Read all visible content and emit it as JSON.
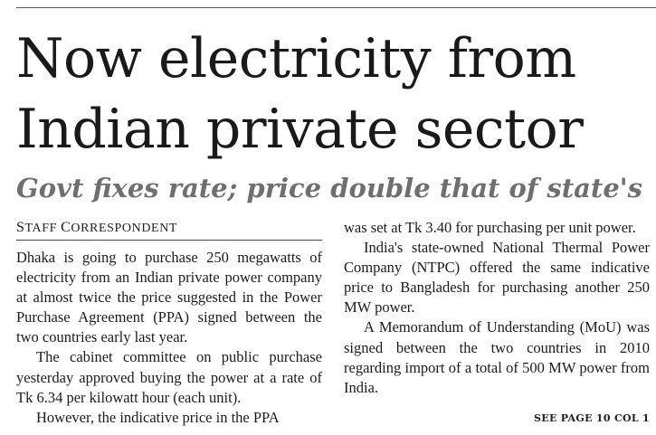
{
  "article": {
    "headline_line1": "Now electricity from",
    "headline_line2": "Indian private sector",
    "deck": "Govt fixes rate; price double that of state's",
    "byline": {
      "s_cap": "S",
      "s_rest": "TAFF ",
      "c_cap": "C",
      "c_rest": "ORRESPONDENT"
    },
    "body_left": [
      "Dhaka is going to purchase 250 megawatts of electricity from an Indian private power company at almost twice the price suggested in the Power Purchase Agreement (PPA) signed between the two countries early last year.",
      "The cabinet committee on public purchase yesterday approved buying the power at a rate of Tk 6.34 per kilowatt hour (each unit).",
      "However, the indicative price in the PPA"
    ],
    "body_right": [
      "was set at Tk 3.40 for purchasing per unit power.",
      "India's state-owned National Thermal Power Company (NTPC) offered the same indicative price to Bangladesh for purchasing another 250 MW power.",
      "A Memorandum of Understanding (MoU) was signed between the two countries in 2010 regarding import of a total of 500 MW power from India."
    ],
    "jump_line": "SEE PAGE 10 COL 1"
  }
}
